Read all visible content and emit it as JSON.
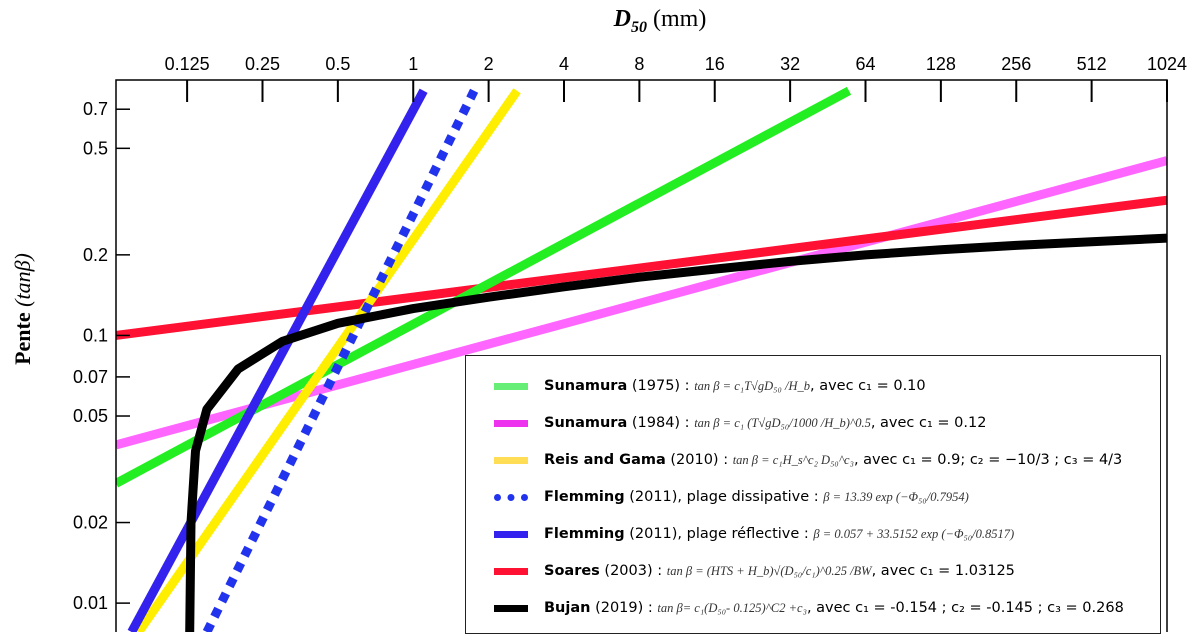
{
  "chart_data": {
    "type": "line",
    "xlabel_symbol": "D",
    "xlabel_sub": "50",
    "xlabel_unit": "(mm)",
    "ylabel_main": "Pente",
    "ylabel_var": "(tanβ)",
    "x_scale": "log2",
    "y_scale": "log",
    "xlim": [
      0.065,
      1024
    ],
    "ylim": [
      0.0078,
      0.9
    ],
    "x_ticks": [
      0.125,
      0.25,
      0.5,
      1,
      2,
      4,
      8,
      16,
      32,
      64,
      128,
      256,
      512,
      1024
    ],
    "x_tick_labels": [
      "0.125",
      "0.25",
      "0.5",
      "1",
      "2",
      "4",
      "8",
      "16",
      "32",
      "64",
      "128",
      "256",
      "512",
      "1024"
    ],
    "y_ticks": [
      0.01,
      0.02,
      0.05,
      0.07,
      0.1,
      0.2,
      0.5,
      0.7
    ],
    "y_tick_labels": [
      "0.01",
      "0.02",
      "0.05",
      "0.07",
      "0.1",
      "0.2",
      "0.5",
      "0.7"
    ],
    "series": [
      {
        "name": "Sunamura (1975)",
        "color": "#22ee22",
        "style": "solid",
        "x": [
          0.065,
          55
        ],
        "y": [
          0.028,
          0.82
        ]
      },
      {
        "name": "Sunamura (1984)",
        "color": "#ff66ff",
        "style": "solid",
        "x": [
          0.065,
          1024
        ],
        "y": [
          0.039,
          0.45
        ]
      },
      {
        "name": "Reis and Gama (2010)",
        "color": "#ffee00",
        "style": "solid",
        "x": [
          0.08,
          2.6
        ],
        "y": [
          0.0078,
          0.82
        ]
      },
      {
        "name": "Flemming (2011), plage dissipative",
        "color": "#2233ee",
        "style": "dotted",
        "x": [
          0.15,
          1.75
        ],
        "y": [
          0.0078,
          0.82
        ]
      },
      {
        "name": "Flemming (2011), plage réflective",
        "color": "#3322ee",
        "style": "solid",
        "x": [
          0.075,
          1.1
        ],
        "y": [
          0.0078,
          0.82
        ]
      },
      {
        "name": "Soares (2003)",
        "color": "#ff1133",
        "style": "solid",
        "x": [
          0.065,
          1024
        ],
        "y": [
          0.1,
          0.32
        ]
      },
      {
        "name": "Bujan (2019)",
        "color": "#000000",
        "style": "solid",
        "x": [
          0.128,
          0.1295,
          0.135,
          0.15,
          0.2,
          0.3,
          0.5,
          1,
          2,
          4,
          8,
          16,
          32,
          64,
          128,
          256,
          512,
          1024
        ],
        "y": [
          0.0078,
          0.02,
          0.037,
          0.053,
          0.075,
          0.095,
          0.111,
          0.126,
          0.139,
          0.152,
          0.165,
          0.177,
          0.189,
          0.2,
          0.209,
          0.217,
          0.224,
          0.231
        ]
      }
    ],
    "legend": {
      "placement": "bottom-right",
      "entries": [
        {
          "name": "Sunamura",
          "year": "(1975) :",
          "equation": "tan β =  c₁T√gD₅₀  /H_b",
          "note": ", avec  c₁ = 0.10"
        },
        {
          "name": "Sunamura",
          "year": "(1984) :",
          "equation": "tan β =  c₁ (T√gD₅₀/1000 /H_b)^0.5",
          "note": ", avec  c₁ = 0.12"
        },
        {
          "name": "Reis and Gama",
          "year": "(2010) :",
          "equation": "tan β =  c₁H_s^c₂ D₅₀^c₃",
          "note": ", avec  c₁ = 0.9; c₂ = −10/3 ; c₃ = 4/3"
        },
        {
          "name": "Flemming",
          "year": "(2011), plage dissipative :",
          "equation": "β = 13.39 exp (−Φ₅₀/0.7954)",
          "note": ""
        },
        {
          "name": "Flemming",
          "year": "(2011), plage réflective :",
          "equation": "β = 0.057 + 33.5152 exp (−Φ₅₀/0.8517)",
          "note": ""
        },
        {
          "name": "Soares",
          "year": "(2003) :",
          "equation": "tan β = (HTS + H_b)√(D₅₀/c₁)^0.25  /BW",
          "note": ", avec  c₁ = 1.03125"
        },
        {
          "name": "Bujan",
          "year": "(2019) :",
          "equation": "tan β= c₁(D₅₀- 0.125)^C2 +c₃",
          "note": ", avec c₁ = -0.154 ; c₂ = -0.145 ; c₃ = 0.268"
        }
      ]
    }
  }
}
